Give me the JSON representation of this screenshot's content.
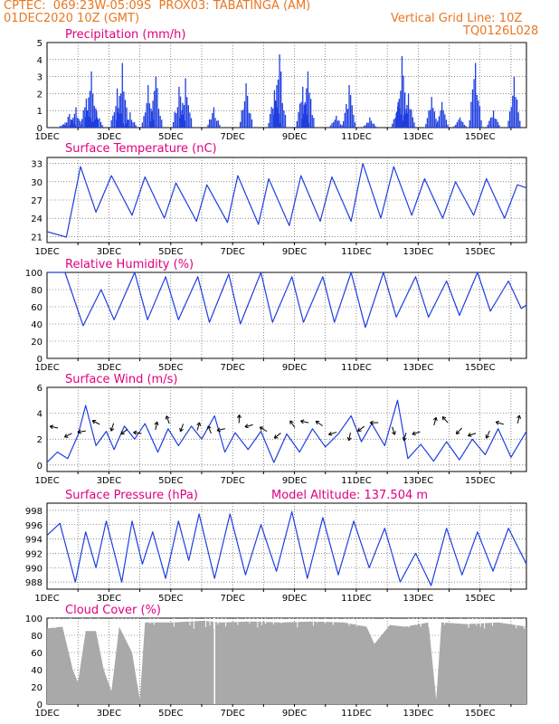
{
  "header": {
    "line1_left": "CPTEC:",
    "line1_coords": "069:23W-05:09S",
    "line1_station": "PROX03: TABATINGA (AM)",
    "line2_left": "01DEC2020 10Z (GMT)",
    "line2_right": "Vertical Grid Line: 10Z",
    "line3_right": "TQ0126L028"
  },
  "colors": {
    "header": "#e87722",
    "title": "#e0007f",
    "series": "#1f3ee0",
    "bars": "#1f3ee0",
    "cloud": "#a9a9a9"
  },
  "x_tick_labels": [
    "1DEC",
    "3DEC",
    "5DEC",
    "7DEC",
    "9DEC",
    "11DEC",
    "13DEC",
    "15DEC"
  ],
  "chart_data": [
    {
      "type": "bar",
      "title": "Precipitation (mm/h)",
      "ylim": [
        0,
        5
      ],
      "yticks": [
        0,
        1,
        2,
        3,
        4,
        5
      ],
      "x": [
        "2020-12-01T10Z",
        "2020-12-16T22Z"
      ],
      "peaks": [
        {
          "time": "2020-12-01T22Z",
          "value": 0.2
        },
        {
          "time": "2020-12-02T03Z",
          "value": 0.8
        },
        {
          "time": "2020-12-02T08Z",
          "value": 1.2
        },
        {
          "time": "2020-12-02T16Z",
          "value": 1.7
        },
        {
          "time": "2020-12-02T20Z",
          "value": 3.3
        },
        {
          "time": "2020-12-03T00Z",
          "value": 1.0
        },
        {
          "time": "2020-12-03T16Z",
          "value": 2.3
        },
        {
          "time": "2020-12-03T20Z",
          "value": 3.8
        },
        {
          "time": "2020-12-04T02Z",
          "value": 0.9
        },
        {
          "time": "2020-12-04T16Z",
          "value": 2.5
        },
        {
          "time": "2020-12-04T22Z",
          "value": 3.0
        },
        {
          "time": "2020-12-05T16Z",
          "value": 2.4
        },
        {
          "time": "2020-12-05T21Z",
          "value": 2.9
        },
        {
          "time": "2020-12-06T19Z",
          "value": 1.2
        },
        {
          "time": "2020-12-07T20Z",
          "value": 2.6
        },
        {
          "time": "2020-12-08T18Z",
          "value": 2.2
        },
        {
          "time": "2020-12-08T22Z",
          "value": 4.3
        },
        {
          "time": "2020-12-09T16Z",
          "value": 2.4
        },
        {
          "time": "2020-12-09T20Z",
          "value": 3.3
        },
        {
          "time": "2020-12-10T18Z",
          "value": 0.7
        },
        {
          "time": "2020-12-11T04Z",
          "value": 2.5
        },
        {
          "time": "2020-12-11T20Z",
          "value": 0.6
        },
        {
          "time": "2020-12-12T18Z",
          "value": 1.5
        },
        {
          "time": "2020-12-12T21Z",
          "value": 4.2
        },
        {
          "time": "2020-12-13T02Z",
          "value": 2.0
        },
        {
          "time": "2020-12-13T20Z",
          "value": 1.8
        },
        {
          "time": "2020-12-14T04Z",
          "value": 1.5
        },
        {
          "time": "2020-12-14T18Z",
          "value": 0.6
        },
        {
          "time": "2020-12-15T06Z",
          "value": 3.8
        },
        {
          "time": "2020-12-15T20Z",
          "value": 1.0
        },
        {
          "time": "2020-12-16T12Z",
          "value": 3.0
        }
      ]
    },
    {
      "type": "line",
      "title": "Surface Temperature (nC)",
      "ylim": [
        20,
        34
      ],
      "yticks": [
        21,
        24,
        27,
        30,
        33
      ],
      "points": [
        {
          "time": "2020-12-01T10Z",
          "value": 21.8
        },
        {
          "time": "2020-12-02T01Z",
          "value": 20.9
        },
        {
          "time": "2020-12-02T12Z",
          "value": 32.5
        },
        {
          "time": "2020-12-03T00Z",
          "value": 25.0
        },
        {
          "time": "2020-12-03T12Z",
          "value": 31.0
        },
        {
          "time": "2020-12-04T04Z",
          "value": 24.5
        },
        {
          "time": "2020-12-04T14Z",
          "value": 30.8
        },
        {
          "time": "2020-12-05T05Z",
          "value": 24.0
        },
        {
          "time": "2020-12-05T14Z",
          "value": 29.8
        },
        {
          "time": "2020-12-06T06Z",
          "value": 23.5
        },
        {
          "time": "2020-12-06T14Z",
          "value": 29.5
        },
        {
          "time": "2020-12-07T06Z",
          "value": 23.3
        },
        {
          "time": "2020-12-07T14Z",
          "value": 31.0
        },
        {
          "time": "2020-12-08T06Z",
          "value": 23.0
        },
        {
          "time": "2020-12-08T14Z",
          "value": 30.5
        },
        {
          "time": "2020-12-09T06Z",
          "value": 22.8
        },
        {
          "time": "2020-12-09T15Z",
          "value": 31.0
        },
        {
          "time": "2020-12-10T06Z",
          "value": 23.5
        },
        {
          "time": "2020-12-10T15Z",
          "value": 30.8
        },
        {
          "time": "2020-12-11T06Z",
          "value": 23.5
        },
        {
          "time": "2020-12-11T15Z",
          "value": 33.0
        },
        {
          "time": "2020-12-12T05Z",
          "value": 24.0
        },
        {
          "time": "2020-12-12T15Z",
          "value": 32.5
        },
        {
          "time": "2020-12-13T05Z",
          "value": 24.5
        },
        {
          "time": "2020-12-13T15Z",
          "value": 30.5
        },
        {
          "time": "2020-12-14T05Z",
          "value": 24.0
        },
        {
          "time": "2020-12-14T15Z",
          "value": 30.0
        },
        {
          "time": "2020-12-15T05Z",
          "value": 24.5
        },
        {
          "time": "2020-12-15T15Z",
          "value": 30.5
        },
        {
          "time": "2020-12-16T05Z",
          "value": 24.0
        },
        {
          "time": "2020-12-16T15Z",
          "value": 29.5
        },
        {
          "time": "2020-12-16T22Z",
          "value": 29.0
        }
      ]
    },
    {
      "type": "line",
      "title": "Relative Humidity (%)",
      "ylim": [
        0,
        100
      ],
      "yticks": [
        0,
        20,
        40,
        60,
        80,
        100
      ],
      "points": [
        {
          "time": "2020-12-01T10Z",
          "value": 100
        },
        {
          "time": "2020-12-02T00Z",
          "value": 100
        },
        {
          "time": "2020-12-02T14Z",
          "value": 38
        },
        {
          "time": "2020-12-03T04Z",
          "value": 80
        },
        {
          "time": "2020-12-03T14Z",
          "value": 45
        },
        {
          "time": "2020-12-04T06Z",
          "value": 100
        },
        {
          "time": "2020-12-04T16Z",
          "value": 45
        },
        {
          "time": "2020-12-05T06Z",
          "value": 95
        },
        {
          "time": "2020-12-05T16Z",
          "value": 45
        },
        {
          "time": "2020-12-06T07Z",
          "value": 95
        },
        {
          "time": "2020-12-06T16Z",
          "value": 42
        },
        {
          "time": "2020-12-07T07Z",
          "value": 98
        },
        {
          "time": "2020-12-07T16Z",
          "value": 40
        },
        {
          "time": "2020-12-08T08Z",
          "value": 100
        },
        {
          "time": "2020-12-08T17Z",
          "value": 42
        },
        {
          "time": "2020-12-09T08Z",
          "value": 95
        },
        {
          "time": "2020-12-09T17Z",
          "value": 42
        },
        {
          "time": "2020-12-10T08Z",
          "value": 95
        },
        {
          "time": "2020-12-10T17Z",
          "value": 42
        },
        {
          "time": "2020-12-11T06Z",
          "value": 100
        },
        {
          "time": "2020-12-11T17Z",
          "value": 36
        },
        {
          "time": "2020-12-12T07Z",
          "value": 100
        },
        {
          "time": "2020-12-12T17Z",
          "value": 48
        },
        {
          "time": "2020-12-13T08Z",
          "value": 95
        },
        {
          "time": "2020-12-13T18Z",
          "value": 48
        },
        {
          "time": "2020-12-14T08Z",
          "value": 90
        },
        {
          "time": "2020-12-14T18Z",
          "value": 50
        },
        {
          "time": "2020-12-15T08Z",
          "value": 100
        },
        {
          "time": "2020-12-15T18Z",
          "value": 55
        },
        {
          "time": "2020-12-16T08Z",
          "value": 90
        },
        {
          "time": "2020-12-16T18Z",
          "value": 58
        },
        {
          "time": "2020-12-16T22Z",
          "value": 62
        }
      ]
    },
    {
      "type": "line",
      "title": "Surface Wind (m/s)",
      "ylim": [
        -0.5,
        6
      ],
      "yticks": [
        0,
        2,
        4,
        6
      ],
      "vectors": "wind direction arrows along the curve",
      "points": [
        {
          "time": "2020-12-01T10Z",
          "value": 0.2
        },
        {
          "time": "2020-12-01T18Z",
          "value": 1.0
        },
        {
          "time": "2020-12-02T02Z",
          "value": 0.5
        },
        {
          "time": "2020-12-02T10Z",
          "value": 2.3
        },
        {
          "time": "2020-12-02T16Z",
          "value": 4.6
        },
        {
          "time": "2020-12-03T00Z",
          "value": 1.5
        },
        {
          "time": "2020-12-03T08Z",
          "value": 2.6
        },
        {
          "time": "2020-12-03T14Z",
          "value": 1.2
        },
        {
          "time": "2020-12-03T22Z",
          "value": 3.0
        },
        {
          "time": "2020-12-04T06Z",
          "value": 2.0
        },
        {
          "time": "2020-12-04T14Z",
          "value": 3.2
        },
        {
          "time": "2020-12-05T00Z",
          "value": 1.0
        },
        {
          "time": "2020-12-05T08Z",
          "value": 2.8
        },
        {
          "time": "2020-12-05T16Z",
          "value": 1.5
        },
        {
          "time": "2020-12-06T02Z",
          "value": 3.0
        },
        {
          "time": "2020-12-06T10Z",
          "value": 2.0
        },
        {
          "time": "2020-12-06T20Z",
          "value": 3.8
        },
        {
          "time": "2020-12-07T04Z",
          "value": 1.0
        },
        {
          "time": "2020-12-07T12Z",
          "value": 2.5
        },
        {
          "time": "2020-12-07T22Z",
          "value": 1.2
        },
        {
          "time": "2020-12-08T08Z",
          "value": 2.6
        },
        {
          "time": "2020-12-08T18Z",
          "value": 0.2
        },
        {
          "time": "2020-12-09T04Z",
          "value": 2.4
        },
        {
          "time": "2020-12-09T14Z",
          "value": 1.0
        },
        {
          "time": "2020-12-10T00Z",
          "value": 2.8
        },
        {
          "time": "2020-12-10T10Z",
          "value": 1.4
        },
        {
          "time": "2020-12-10T20Z",
          "value": 2.4
        },
        {
          "time": "2020-12-11T06Z",
          "value": 3.8
        },
        {
          "time": "2020-12-11T14Z",
          "value": 1.8
        },
        {
          "time": "2020-12-11T22Z",
          "value": 3.2
        },
        {
          "time": "2020-12-12T08Z",
          "value": 1.5
        },
        {
          "time": "2020-12-12T18Z",
          "value": 5.0
        },
        {
          "time": "2020-12-13T02Z",
          "value": 0.5
        },
        {
          "time": "2020-12-13T12Z",
          "value": 1.6
        },
        {
          "time": "2020-12-13T22Z",
          "value": 0.3
        },
        {
          "time": "2020-12-14T08Z",
          "value": 1.8
        },
        {
          "time": "2020-12-14T18Z",
          "value": 0.4
        },
        {
          "time": "2020-12-15T04Z",
          "value": 2.0
        },
        {
          "time": "2020-12-15T14Z",
          "value": 0.8
        },
        {
          "time": "2020-12-16T00Z",
          "value": 2.8
        },
        {
          "time": "2020-12-16T10Z",
          "value": 0.6
        },
        {
          "time": "2020-12-16T22Z",
          "value": 2.6
        }
      ]
    },
    {
      "type": "line",
      "title": "Surface Pressure (hPa)",
      "annotation": "Model Altitude: 137.504 m",
      "ylim": [
        987,
        999
      ],
      "yticks": [
        988,
        990,
        992,
        994,
        996,
        998
      ],
      "points": [
        {
          "time": "2020-12-01T10Z",
          "value": 994.5
        },
        {
          "time": "2020-12-01T20Z",
          "value": 996.2
        },
        {
          "time": "2020-12-02T08Z",
          "value": 988.0
        },
        {
          "time": "2020-12-02T16Z",
          "value": 995.0
        },
        {
          "time": "2020-12-03T00Z",
          "value": 990.0
        },
        {
          "time": "2020-12-03T08Z",
          "value": 996.5
        },
        {
          "time": "2020-12-03T20Z",
          "value": 988.0
        },
        {
          "time": "2020-12-04T04Z",
          "value": 996.5
        },
        {
          "time": "2020-12-04T12Z",
          "value": 990.5
        },
        {
          "time": "2020-12-04T20Z",
          "value": 995.0
        },
        {
          "time": "2020-12-05T06Z",
          "value": 988.5
        },
        {
          "time": "2020-12-05T16Z",
          "value": 996.5
        },
        {
          "time": "2020-12-06T00Z",
          "value": 991.0
        },
        {
          "time": "2020-12-06T08Z",
          "value": 997.5
        },
        {
          "time": "2020-12-06T20Z",
          "value": 988.5
        },
        {
          "time": "2020-12-07T08Z",
          "value": 997.5
        },
        {
          "time": "2020-12-07T20Z",
          "value": 989.0
        },
        {
          "time": "2020-12-08T08Z",
          "value": 996.0
        },
        {
          "time": "2020-12-08T20Z",
          "value": 989.5
        },
        {
          "time": "2020-12-09T08Z",
          "value": 997.8
        },
        {
          "time": "2020-12-09T20Z",
          "value": 988.5
        },
        {
          "time": "2020-12-10T08Z",
          "value": 997.0
        },
        {
          "time": "2020-12-10T20Z",
          "value": 989.0
        },
        {
          "time": "2020-12-11T08Z",
          "value": 996.5
        },
        {
          "time": "2020-12-11T20Z",
          "value": 990.0
        },
        {
          "time": "2020-12-12T08Z",
          "value": 995.5
        },
        {
          "time": "2020-12-12T20Z",
          "value": 988.0
        },
        {
          "time": "2020-12-13T08Z",
          "value": 992.0
        },
        {
          "time": "2020-12-13T20Z",
          "value": 987.5
        },
        {
          "time": "2020-12-14T08Z",
          "value": 995.5
        },
        {
          "time": "2020-12-14T20Z",
          "value": 989.0
        },
        {
          "time": "2020-12-15T08Z",
          "value": 995.0
        },
        {
          "time": "2020-12-15T20Z",
          "value": 989.5
        },
        {
          "time": "2020-12-16T08Z",
          "value": 995.5
        },
        {
          "time": "2020-12-16T22Z",
          "value": 990.5
        }
      ]
    },
    {
      "type": "area",
      "title": "Cloud Cover (%)",
      "ylim": [
        0,
        100
      ],
      "yticks": [
        0,
        20,
        40,
        60,
        80,
        100
      ],
      "points": [
        {
          "time": "2020-12-01T10Z",
          "value": 88
        },
        {
          "time": "2020-12-01T22Z",
          "value": 90
        },
        {
          "time": "2020-12-02T06Z",
          "value": 40
        },
        {
          "time": "2020-12-02T10Z",
          "value": 25
        },
        {
          "time": "2020-12-02T16Z",
          "value": 85
        },
        {
          "time": "2020-12-03T00Z",
          "value": 85
        },
        {
          "time": "2020-12-03T06Z",
          "value": 40
        },
        {
          "time": "2020-12-03T12Z",
          "value": 15
        },
        {
          "time": "2020-12-03T18Z",
          "value": 90
        },
        {
          "time": "2020-12-04T04Z",
          "value": 60
        },
        {
          "time": "2020-12-04T10Z",
          "value": 5
        },
        {
          "time": "2020-12-04T14Z",
          "value": 95
        },
        {
          "time": "2020-12-05T12Z",
          "value": 95
        },
        {
          "time": "2020-12-06T12Z",
          "value": 97
        },
        {
          "time": "2020-12-07T00Z",
          "value": 95
        },
        {
          "time": "2020-12-08T00Z",
          "value": 96
        },
        {
          "time": "2020-12-09T00Z",
          "value": 95
        },
        {
          "time": "2020-12-10T00Z",
          "value": 96
        },
        {
          "time": "2020-12-11T00Z",
          "value": 95
        },
        {
          "time": "2020-12-11T18Z",
          "value": 90
        },
        {
          "time": "2020-12-12T00Z",
          "value": 70
        },
        {
          "time": "2020-12-12T12Z",
          "value": 92
        },
        {
          "time": "2020-12-13T00Z",
          "value": 90
        },
        {
          "time": "2020-12-13T18Z",
          "value": 95
        },
        {
          "time": "2020-12-14T00Z",
          "value": 5
        },
        {
          "time": "2020-12-14T04Z",
          "value": 95
        },
        {
          "time": "2020-12-15T00Z",
          "value": 93
        },
        {
          "time": "2020-12-16T00Z",
          "value": 95
        },
        {
          "time": "2020-12-16T22Z",
          "value": 90
        }
      ]
    }
  ]
}
